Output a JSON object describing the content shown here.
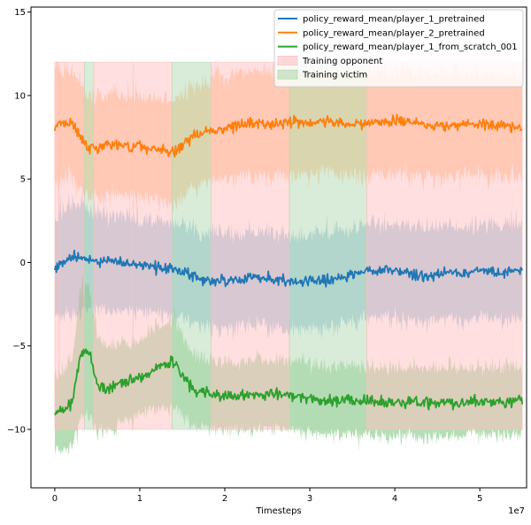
{
  "chart_data": {
    "type": "line",
    "title": "",
    "xlabel": "Timesteps",
    "ylabel": "",
    "x_offset_label": "1e7",
    "xlim": [
      -0.28,
      5.55
    ],
    "ylim": [
      -13.5,
      15.3
    ],
    "x_ticks": [
      0,
      1,
      2,
      3,
      4,
      5
    ],
    "x_tick_labels": [
      "0",
      "1",
      "2",
      "3",
      "4",
      "5"
    ],
    "y_ticks": [
      -10,
      -5,
      0,
      5,
      10,
      15
    ],
    "y_tick_labels": [
      "−10",
      "−5",
      "0",
      "5",
      "10",
      "15"
    ],
    "grid": false,
    "legend_position": "top-right",
    "series": [
      {
        "name": "policy_reward_mean/player_1_pretrained",
        "color": "#1f77b4",
        "x": [
          0,
          0.2,
          0.4,
          0.6,
          0.8,
          1.0,
          1.2,
          1.4,
          1.6,
          1.8,
          2.0,
          2.2,
          2.4,
          2.6,
          2.8,
          3.0,
          3.2,
          3.4,
          3.6,
          3.8,
          4.0,
          4.2,
          4.4,
          4.6,
          4.8,
          5.0,
          5.2,
          5.4,
          5.5
        ],
        "mean": [
          -0.3,
          0.3,
          0.2,
          0.0,
          0.0,
          -0.1,
          -0.3,
          -0.4,
          -0.8,
          -1.1,
          -1.1,
          -1.0,
          -0.9,
          -1.0,
          -1.2,
          -1.1,
          -1.1,
          -0.9,
          -0.6,
          -0.5,
          -0.5,
          -0.7,
          -0.8,
          -0.6,
          -0.7,
          -0.5,
          -0.6,
          -0.5,
          -0.4
        ],
        "band_halfwidth": [
          3.5,
          4.0,
          3.5,
          3.3,
          3.3,
          3.3,
          3.3,
          3.3,
          3.3,
          3.3,
          3.3,
          3.3,
          3.3,
          3.3,
          3.3,
          3.3,
          3.3,
          3.3,
          3.3,
          3.3,
          3.3,
          3.3,
          3.3,
          3.3,
          3.3,
          3.3,
          3.3,
          3.3,
          3.3
        ]
      },
      {
        "name": "policy_reward_mean/player_2_pretrained",
        "color": "#ff7f0e",
        "x": [
          0,
          0.2,
          0.4,
          0.6,
          0.8,
          1.0,
          1.2,
          1.4,
          1.6,
          1.8,
          2.0,
          2.2,
          2.4,
          2.6,
          2.8,
          3.0,
          3.2,
          3.4,
          3.6,
          3.8,
          4.0,
          4.2,
          4.4,
          4.6,
          4.8,
          5.0,
          5.2,
          5.4,
          5.5
        ],
        "mean": [
          8.2,
          8.4,
          6.8,
          7.1,
          7.0,
          7.0,
          6.8,
          6.6,
          7.4,
          7.9,
          8.0,
          8.3,
          8.3,
          8.4,
          8.4,
          8.3,
          8.5,
          8.3,
          8.3,
          8.4,
          8.4,
          8.4,
          8.2,
          8.2,
          8.3,
          8.3,
          8.2,
          8.2,
          8.0
        ],
        "band_halfwidth": [
          4.0,
          3.8,
          3.5,
          3.5,
          3.6,
          3.6,
          3.6,
          3.6,
          3.6,
          3.6,
          3.6,
          3.6,
          3.6,
          3.6,
          3.6,
          3.6,
          3.6,
          3.6,
          3.6,
          3.6,
          3.6,
          3.6,
          3.6,
          3.6,
          3.6,
          3.6,
          3.6,
          3.6,
          3.6
        ]
      },
      {
        "name": "policy_reward_mean/player_1_from_scratch_001",
        "color": "#2ca02c",
        "x": [
          0,
          0.2,
          0.3,
          0.4,
          0.5,
          0.6,
          0.8,
          1.0,
          1.2,
          1.4,
          1.6,
          1.8,
          2.0,
          2.2,
          2.4,
          2.6,
          2.8,
          3.0,
          3.2,
          3.4,
          3.6,
          3.8,
          4.0,
          4.2,
          4.4,
          4.6,
          4.8,
          5.0,
          5.2,
          5.4,
          5.5
        ],
        "mean": [
          -9.0,
          -8.6,
          -5.5,
          -5.2,
          -7.3,
          -7.6,
          -7.2,
          -6.9,
          -6.3,
          -6.0,
          -7.5,
          -7.9,
          -8.0,
          -8.0,
          -7.9,
          -7.9,
          -8.0,
          -8.1,
          -8.3,
          -8.2,
          -8.3,
          -8.3,
          -8.4,
          -8.3,
          -8.4,
          -8.4,
          -8.4,
          -8.3,
          -8.4,
          -8.3,
          -8.2
        ],
        "band_halfwidth": [
          2.5,
          3.0,
          4.5,
          4.5,
          3.5,
          3.0,
          2.8,
          2.6,
          3.0,
          3.0,
          2.6,
          2.4,
          2.4,
          2.4,
          2.4,
          2.4,
          2.4,
          2.4,
          2.4,
          2.4,
          2.4,
          2.4,
          2.4,
          2.4,
          2.4,
          2.4,
          2.4,
          2.4,
          2.4,
          2.4,
          2.4
        ]
      }
    ],
    "phases": {
      "y_range": [
        -10,
        12
      ],
      "legend": [
        {
          "name": "Training opponent",
          "color": "#ffc0c0"
        },
        {
          "name": "Training victim",
          "color": "#b3d9b3"
        }
      ],
      "intervals": [
        {
          "start": 0.0,
          "end": 0.05,
          "role": "Training opponent"
        },
        {
          "start": 0.05,
          "end": 0.35,
          "role": "Training opponent"
        },
        {
          "start": 0.35,
          "end": 0.46,
          "role": "Training victim"
        },
        {
          "start": 0.46,
          "end": 0.92,
          "role": "Training opponent"
        },
        {
          "start": 0.92,
          "end": 1.38,
          "role": "Training opponent"
        },
        {
          "start": 1.38,
          "end": 1.84,
          "role": "Training victim"
        },
        {
          "start": 1.84,
          "end": 2.76,
          "role": "Training opponent"
        },
        {
          "start": 2.76,
          "end": 3.67,
          "role": "Training victim"
        },
        {
          "start": 3.67,
          "end": 5.5,
          "role": "Training opponent"
        }
      ]
    }
  }
}
